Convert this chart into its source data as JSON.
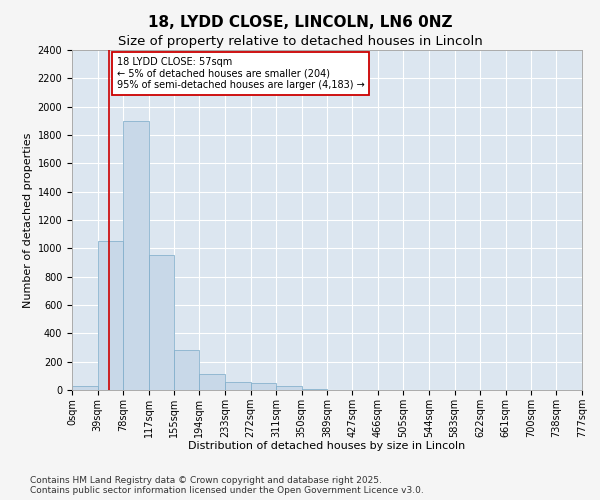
{
  "title_line1": "18, LYDD CLOSE, LINCOLN, LN6 0NZ",
  "title_line2": "Size of property relative to detached houses in Lincoln",
  "xlabel": "Distribution of detached houses by size in Lincoln",
  "ylabel": "Number of detached properties",
  "bar_color": "#c8d8e8",
  "bar_edge_color": "#7aaac8",
  "background_color": "#dce6f0",
  "grid_color": "#ffffff",
  "fig_background": "#f5f5f5",
  "red_line_x": 57,
  "annotation_text": "18 LYDD CLOSE: 57sqm\n← 5% of detached houses are smaller (204)\n95% of semi-detached houses are larger (4,183) →",
  "annotation_box_color": "#ffffff",
  "annotation_box_edge": "#cc0000",
  "footnote": "Contains HM Land Registry data © Crown copyright and database right 2025.\nContains public sector information licensed under the Open Government Licence v3.0.",
  "bins": [
    0,
    39,
    78,
    117,
    155,
    194,
    233,
    272,
    311,
    350,
    389,
    427,
    466,
    505,
    544,
    583,
    622,
    661,
    700,
    738,
    777
  ],
  "counts": [
    25,
    1050,
    1900,
    950,
    280,
    110,
    55,
    50,
    25,
    5,
    2,
    1,
    0,
    0,
    0,
    0,
    0,
    0,
    0,
    0
  ],
  "ylim": [
    0,
    2400
  ],
  "yticks": [
    0,
    200,
    400,
    600,
    800,
    1000,
    1200,
    1400,
    1600,
    1800,
    2000,
    2200,
    2400
  ],
  "title_fontsize": 11,
  "subtitle_fontsize": 9.5,
  "axis_label_fontsize": 8,
  "tick_fontsize": 7,
  "footnote_fontsize": 6.5
}
